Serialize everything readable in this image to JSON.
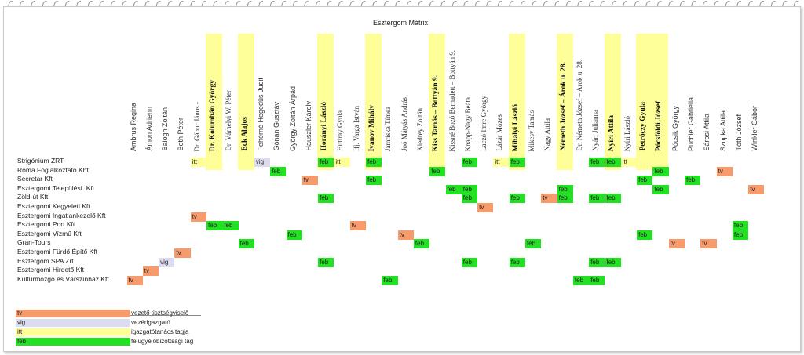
{
  "title": "Esztergom Mátrix",
  "colors": {
    "tv": "#f79a6c",
    "vig": "#dcdcf0",
    "itt": "#ffff99",
    "feb": "#22e022"
  },
  "people": [
    "Ambrus Regina",
    "Ámon Adrienn",
    "Balogh Zoltán",
    "Both Péter",
    "Dr. Gábor János -",
    "Dr. Kolumbán György",
    "Dr. Várhelyi W. Péter",
    "Eck Alajos",
    "Fehérné Hegedűs Judit",
    "Gónan Gusztáv",
    "György Zoltán Árpád",
    "Hauszler Károly",
    "Horányi László",
    "Hutiray Gyula",
    "Ifj. Varga István",
    "Ivanov Mihály",
    "Jamriska Tímea",
    "Joó Mátyás András",
    "Kiedrey Zoltán",
    "Kiss Tamás – Bottyán 9.",
    "Kissné Bozó Bernadett – Bottyán 9.",
    "Knapp-Nagy Beáta",
    "Laczó Imre György",
    "Lázár Mózes",
    "Mihályi László",
    "Mikesy Tamás",
    "Nagy Attila",
    "Németh József – Árok u. 28.",
    "Dr. Németh József – Árok u. 28.",
    "Nyári Julianna",
    "Nyíri Attila",
    "Nyíri László",
    "Petróczy Gyula",
    "Pócsföldi József",
    "Pócsik György",
    "Puchler Gabriella",
    "Sárosi Attila",
    "Szopka Attila",
    "Tóth József",
    "Winkler Gábor"
  ],
  "companies": [
    "Strigónium ZRT",
    "Roma Foglalkoztató Kht",
    "Secretar Kft",
    "Esztergomi Településf. Kft",
    "Zöld-út Kft",
    "Esztergomi Kegyeleti Kft",
    "Esztergomi Ingatlankezelő Kft",
    "Esztergomi Port Kft",
    "Esztergomi Vízmű Kft",
    "Gran-Tours",
    "Esztergomi Fürdő Építő Kft",
    "Esztergom SPA Zrt",
    "Esztergomi Hirdető Kft",
    "Kultúrmozgó és Várszínház Kft"
  ],
  "legend": [
    {
      "code": "tv",
      "label": "vezető tisztségviselő"
    },
    {
      "code": "vig",
      "label": "vezérigazgató"
    },
    {
      "code": "itt",
      "label": "igazgatótanács tagja"
    },
    {
      "code": "feb",
      "label": "felügyelőbizottsági tag"
    }
  ],
  "cells": [
    {
      "row": 0,
      "col": 4,
      "code": "itt"
    },
    {
      "row": 0,
      "col": 8,
      "code": "vig"
    },
    {
      "row": 0,
      "col": 12,
      "code": "feb"
    },
    {
      "row": 0,
      "col": 13,
      "code": "itt"
    },
    {
      "row": 0,
      "col": 15,
      "code": "feb"
    },
    {
      "row": 0,
      "col": 21,
      "code": "feb"
    },
    {
      "row": 0,
      "col": 23,
      "code": "itt"
    },
    {
      "row": 0,
      "col": 24,
      "code": "feb"
    },
    {
      "row": 0,
      "col": 29,
      "code": "feb"
    },
    {
      "row": 0,
      "col": 30,
      "code": "feb"
    },
    {
      "row": 0,
      "col": 31,
      "code": "itt"
    },
    {
      "row": 1,
      "col": 9,
      "code": "feb"
    },
    {
      "row": 1,
      "col": 19,
      "code": "feb"
    },
    {
      "row": 1,
      "col": 33,
      "code": "feb"
    },
    {
      "row": 1,
      "col": 37,
      "code": "tv"
    },
    {
      "row": 2,
      "col": 11,
      "code": "tv"
    },
    {
      "row": 2,
      "col": 15,
      "code": "feb"
    },
    {
      "row": 2,
      "col": 32,
      "code": "feb"
    },
    {
      "row": 2,
      "col": 35,
      "code": "feb"
    },
    {
      "row": 3,
      "col": 20,
      "code": "feb"
    },
    {
      "row": 3,
      "col": 21,
      "code": "feb"
    },
    {
      "row": 3,
      "col": 27,
      "code": "feb"
    },
    {
      "row": 3,
      "col": 33,
      "code": "feb"
    },
    {
      "row": 3,
      "col": 39,
      "code": "tv"
    },
    {
      "row": 4,
      "col": 12,
      "code": "feb"
    },
    {
      "row": 4,
      "col": 21,
      "code": "feb"
    },
    {
      "row": 4,
      "col": 24,
      "code": "feb"
    },
    {
      "row": 4,
      "col": 26,
      "code": "tv"
    },
    {
      "row": 4,
      "col": 27,
      "code": "feb"
    },
    {
      "row": 4,
      "col": 29,
      "code": "feb"
    },
    {
      "row": 4,
      "col": 30,
      "code": "feb"
    },
    {
      "row": 5,
      "col": 22,
      "code": "tv"
    },
    {
      "row": 6,
      "col": 4,
      "code": "tv"
    },
    {
      "row": 7,
      "col": 5,
      "code": "feb"
    },
    {
      "row": 7,
      "col": 6,
      "code": "feb"
    },
    {
      "row": 7,
      "col": 14,
      "code": "tv"
    },
    {
      "row": 7,
      "col": 38,
      "code": "feb"
    },
    {
      "row": 8,
      "col": 10,
      "code": "feb"
    },
    {
      "row": 8,
      "col": 17,
      "code": "tv"
    },
    {
      "row": 8,
      "col": 32,
      "code": "feb"
    },
    {
      "row": 8,
      "col": 38,
      "code": "feb"
    },
    {
      "row": 9,
      "col": 7,
      "code": "feb"
    },
    {
      "row": 9,
      "col": 18,
      "code": "feb"
    },
    {
      "row": 9,
      "col": 25,
      "code": "feb"
    },
    {
      "row": 9,
      "col": 34,
      "code": "tv"
    },
    {
      "row": 9,
      "col": 36,
      "code": "tv"
    },
    {
      "row": 10,
      "col": 3,
      "code": "tv"
    },
    {
      "row": 11,
      "col": 2,
      "code": "vig"
    },
    {
      "row": 11,
      "col": 12,
      "code": "feb"
    },
    {
      "row": 11,
      "col": 21,
      "code": "feb"
    },
    {
      "row": 11,
      "col": 24,
      "code": "feb"
    },
    {
      "row": 11,
      "col": 29,
      "code": "feb"
    },
    {
      "row": 11,
      "col": 30,
      "code": "feb"
    },
    {
      "row": 12,
      "col": 1,
      "code": "tv"
    },
    {
      "row": 13,
      "col": 0,
      "code": "tv"
    },
    {
      "row": 13,
      "col": 16,
      "code": "feb"
    },
    {
      "row": 13,
      "col": 28,
      "code": "feb"
    },
    {
      "row": 13,
      "col": 29,
      "code": "feb"
    }
  ]
}
